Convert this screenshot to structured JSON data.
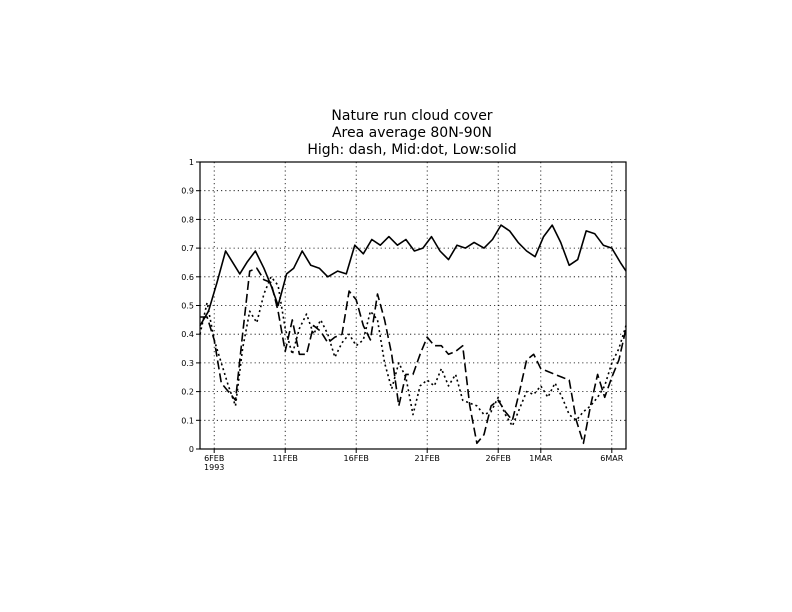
{
  "chart_data": {
    "type": "line",
    "title": [
      "Nature run    cloud cover",
      "Area average 80N-90N",
      "High: dash, Mid:dot, Low:solid"
    ],
    "xlabel": "",
    "ylabel": "",
    "ylim": [
      0,
      1
    ],
    "yticks": [
      "0",
      "0.1",
      "0.2",
      "0.3",
      "0.4",
      "0.5",
      "0.6",
      "0.7",
      "0.8",
      "0.9",
      "1"
    ],
    "xrange_days": [
      0,
      30
    ],
    "xticks": [
      {
        "day": 1,
        "label": "6FEB",
        "sublabel": "1993"
      },
      {
        "day": 6,
        "label": "11FEB"
      },
      {
        "day": 11,
        "label": "16FEB"
      },
      {
        "day": 16,
        "label": "21FEB"
      },
      {
        "day": 21,
        "label": "26FEB"
      },
      {
        "day": 24,
        "label": "1MAR"
      },
      {
        "day": 29,
        "label": "6MAR"
      }
    ],
    "grid": true,
    "series": [
      {
        "name": "Low",
        "style": "solid",
        "x": [
          0,
          0.6,
          1.2,
          1.8,
          2.3,
          2.8,
          3.3,
          3.9,
          4.5,
          5.0,
          5.5,
          6.1,
          6.6,
          7.2,
          7.8,
          8.4,
          9.0,
          9.7,
          10.3,
          10.9,
          11.5,
          12.1,
          12.7,
          13.3,
          13.9,
          14.5,
          15.1,
          15.7,
          16.3,
          16.9,
          17.5,
          18.1,
          18.7,
          19.3,
          20.0,
          20.6,
          21.2,
          21.8,
          22.4,
          23.0,
          23.6,
          24.2,
          24.8,
          25.4,
          26.0,
          26.6,
          27.2,
          27.8,
          28.4,
          29.0,
          29.6,
          30.0
        ],
        "values": [
          0.43,
          0.48,
          0.58,
          0.69,
          0.65,
          0.61,
          0.65,
          0.69,
          0.63,
          0.57,
          0.5,
          0.61,
          0.63,
          0.69,
          0.64,
          0.63,
          0.6,
          0.62,
          0.61,
          0.71,
          0.68,
          0.73,
          0.71,
          0.74,
          0.71,
          0.73,
          0.69,
          0.7,
          0.74,
          0.69,
          0.66,
          0.71,
          0.7,
          0.72,
          0.7,
          0.73,
          0.78,
          0.76,
          0.72,
          0.69,
          0.67,
          0.74,
          0.78,
          0.72,
          0.64,
          0.66,
          0.76,
          0.75,
          0.71,
          0.7,
          0.65,
          0.62
        ]
      },
      {
        "name": "Mid",
        "style": "dot",
        "x": [
          0,
          0.5,
          1.0,
          1.5,
          2.0,
          2.5,
          3.0,
          3.5,
          4.0,
          4.5,
          5.0,
          5.5,
          6.0,
          6.5,
          7.0,
          7.5,
          8.0,
          8.5,
          9.0,
          9.5,
          10.0,
          10.5,
          11.0,
          11.5,
          12.0,
          12.5,
          13.0,
          13.5,
          14.0,
          14.5,
          15.0,
          15.5,
          16.0,
          16.5,
          17.0,
          17.5,
          18.0,
          18.5,
          19.0,
          19.5,
          20.0,
          20.5,
          21.0,
          21.5,
          22.0,
          22.5,
          23.0,
          23.5,
          24.0,
          24.5,
          25.0,
          25.5,
          26.0,
          26.5,
          27.0,
          27.5,
          28.0,
          28.5,
          29.0,
          29.5,
          30.0
        ],
        "values": [
          0.4,
          0.51,
          0.38,
          0.3,
          0.22,
          0.15,
          0.35,
          0.48,
          0.44,
          0.54,
          0.6,
          0.57,
          0.42,
          0.33,
          0.42,
          0.47,
          0.4,
          0.45,
          0.4,
          0.32,
          0.37,
          0.4,
          0.36,
          0.38,
          0.48,
          0.45,
          0.3,
          0.21,
          0.3,
          0.25,
          0.12,
          0.22,
          0.24,
          0.22,
          0.28,
          0.22,
          0.26,
          0.17,
          0.16,
          0.15,
          0.12,
          0.13,
          0.18,
          0.12,
          0.08,
          0.14,
          0.2,
          0.19,
          0.22,
          0.18,
          0.23,
          0.18,
          0.12,
          0.1,
          0.13,
          0.15,
          0.18,
          0.22,
          0.3,
          0.35,
          0.43
        ]
      },
      {
        "name": "High",
        "style": "dash",
        "x": [
          0,
          0.5,
          1.0,
          1.5,
          2.0,
          2.5,
          3.0,
          3.5,
          4.0,
          4.5,
          5.0,
          5.5,
          6.0,
          6.5,
          7.0,
          7.5,
          8.0,
          8.5,
          9.0,
          9.5,
          10.0,
          10.5,
          11.0,
          11.5,
          12.0,
          12.5,
          13.0,
          13.5,
          14.0,
          14.5,
          15.0,
          15.5,
          16.0,
          16.5,
          17.0,
          17.5,
          18.0,
          18.5,
          19.0,
          19.5,
          20.0,
          20.5,
          21.0,
          21.5,
          22.0,
          22.5,
          23.0,
          23.5,
          24.0,
          24.5,
          25.0,
          25.5,
          26.0,
          26.5,
          27.0,
          27.5,
          28.0,
          28.5,
          29.0,
          29.5,
          30.0
        ],
        "values": [
          0.46,
          0.46,
          0.38,
          0.23,
          0.2,
          0.17,
          0.4,
          0.62,
          0.63,
          0.59,
          0.58,
          0.48,
          0.34,
          0.45,
          0.33,
          0.33,
          0.43,
          0.41,
          0.37,
          0.39,
          0.4,
          0.55,
          0.52,
          0.43,
          0.38,
          0.54,
          0.45,
          0.33,
          0.15,
          0.26,
          0.26,
          0.33,
          0.39,
          0.36,
          0.36,
          0.33,
          0.34,
          0.36,
          0.15,
          0.02,
          0.05,
          0.15,
          0.17,
          0.13,
          0.1,
          0.2,
          0.31,
          0.33,
          0.28,
          0.27,
          0.26,
          0.25,
          0.24,
          0.1,
          0.02,
          0.15,
          0.26,
          0.18,
          0.25,
          0.31,
          0.42
        ]
      }
    ]
  }
}
